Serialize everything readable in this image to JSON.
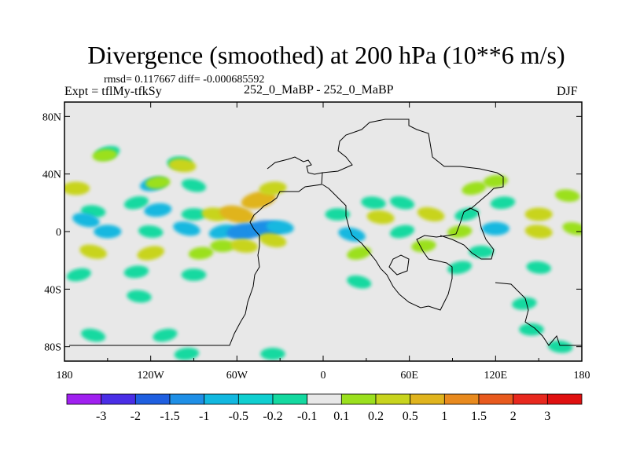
{
  "chart_data": {
    "type": "heatmap",
    "title": "Divergence (smoothed) at 200 hPa (10**6 m/s)",
    "stats_text": "rmsd= 0.117667  diff= -0.000685592",
    "left_label": "Expt = tflMy-tfkSy",
    "center_label": "252_0_MaBP - 252_0_MaBP",
    "right_label": "DJF",
    "xlabel": "",
    "ylabel": "",
    "xlim": [
      -180,
      180
    ],
    "ylim": [
      -90,
      90
    ],
    "x_ticks": [
      {
        "value": -180,
        "label": "180"
      },
      {
        "value": -120,
        "label": "120W"
      },
      {
        "value": -60,
        "label": "60W"
      },
      {
        "value": 0,
        "label": "0"
      },
      {
        "value": 60,
        "label": "60E"
      },
      {
        "value": 120,
        "label": "120E"
      },
      {
        "value": 180,
        "label": "180"
      }
    ],
    "y_ticks": [
      {
        "value": 80,
        "label": "80N"
      },
      {
        "value": 40,
        "label": "40N"
      },
      {
        "value": 0,
        "label": "0"
      },
      {
        "value": -40,
        "label": "40S"
      },
      {
        "value": -80,
        "label": "80S"
      }
    ],
    "colorbar": {
      "labels": [
        "-3",
        "-2",
        "-1.5",
        "-1",
        "-0.5",
        "-0.2",
        "-0.1",
        "0.1",
        "0.2",
        "0.5",
        "1",
        "1.5",
        "2",
        "3"
      ],
      "colors": [
        "#a020f0",
        "#4a2ee6",
        "#1f5fe0",
        "#1f8fe6",
        "#12b8e0",
        "#10cfd0",
        "#14d9a0",
        "#e8e8e8",
        "#9be01e",
        "#c8d41e",
        "#e0b41e",
        "#e88a1e",
        "#e85a1e",
        "#e8281e",
        "#e01010"
      ]
    },
    "fill_colors": {
      "background": "#e8e8e8",
      "neg_small": "#14d9a0",
      "neg_mid": "#12b8e0",
      "neg_large": "#1f8fe6",
      "pos_small": "#9be01e",
      "pos_mid": "#c8d41e",
      "pos_large": "#e0b41e"
    },
    "cells": [
      {
        "lon": -150,
        "lat": 55,
        "value": -0.15
      },
      {
        "lon": -152,
        "lat": 53,
        "value": 0.15
      },
      {
        "lon": -172,
        "lat": 30,
        "value": 0.3
      },
      {
        "lon": -160,
        "lat": 14,
        "value": -0.15
      },
      {
        "lon": -165,
        "lat": 8,
        "value": -0.3
      },
      {
        "lon": -118,
        "lat": 33,
        "value": -0.3
      },
      {
        "lon": -115,
        "lat": 34,
        "value": 0.15
      },
      {
        "lon": -100,
        "lat": 48,
        "value": -0.15
      },
      {
        "lon": -98,
        "lat": 46,
        "value": 0.3
      },
      {
        "lon": -90,
        "lat": 32,
        "value": -0.15
      },
      {
        "lon": -130,
        "lat": 20,
        "value": -0.15
      },
      {
        "lon": -115,
        "lat": 15,
        "value": -0.3
      },
      {
        "lon": -90,
        "lat": 12,
        "value": -0.15
      },
      {
        "lon": -75,
        "lat": 12,
        "value": 0.3
      },
      {
        "lon": -60,
        "lat": 12,
        "value": 0.7
      },
      {
        "lon": -45,
        "lat": 22,
        "value": 0.7
      },
      {
        "lon": -35,
        "lat": 30,
        "value": 0.3
      },
      {
        "lon": -150,
        "lat": 0,
        "value": -0.3
      },
      {
        "lon": -120,
        "lat": 0,
        "value": -0.15
      },
      {
        "lon": -95,
        "lat": 2,
        "value": -0.3
      },
      {
        "lon": -70,
        "lat": 0,
        "value": -0.3
      },
      {
        "lon": -55,
        "lat": 0,
        "value": -0.7
      },
      {
        "lon": -40,
        "lat": 2,
        "value": -0.7
      },
      {
        "lon": -30,
        "lat": 3,
        "value": -0.3
      },
      {
        "lon": -160,
        "lat": -14,
        "value": 0.3
      },
      {
        "lon": -120,
        "lat": -15,
        "value": 0.3
      },
      {
        "lon": -85,
        "lat": -15,
        "value": 0.15
      },
      {
        "lon": -70,
        "lat": -10,
        "value": 0.15
      },
      {
        "lon": -55,
        "lat": -10,
        "value": 0.3
      },
      {
        "lon": -35,
        "lat": -6,
        "value": 0.3
      },
      {
        "lon": -170,
        "lat": -30,
        "value": -0.15
      },
      {
        "lon": -130,
        "lat": -28,
        "value": -0.15
      },
      {
        "lon": -90,
        "lat": -30,
        "value": -0.15
      },
      {
        "lon": -128,
        "lat": -45,
        "value": -0.15
      },
      {
        "lon": -160,
        "lat": -72,
        "value": -0.15
      },
      {
        "lon": -110,
        "lat": -72,
        "value": -0.15
      },
      {
        "lon": -95,
        "lat": -85,
        "value": -0.15
      },
      {
        "lon": -35,
        "lat": -85,
        "value": -0.15
      },
      {
        "lon": 35,
        "lat": 20,
        "value": -0.15
      },
      {
        "lon": 55,
        "lat": 20,
        "value": -0.15
      },
      {
        "lon": 105,
        "lat": 30,
        "value": 0.15
      },
      {
        "lon": 120,
        "lat": 35,
        "value": 0.15
      },
      {
        "lon": 10,
        "lat": 12,
        "value": -0.15
      },
      {
        "lon": 40,
        "lat": 10,
        "value": 0.3
      },
      {
        "lon": 75,
        "lat": 12,
        "value": 0.3
      },
      {
        "lon": 100,
        "lat": 12,
        "value": -0.15
      },
      {
        "lon": 125,
        "lat": 20,
        "value": -0.15
      },
      {
        "lon": 150,
        "lat": 12,
        "value": 0.3
      },
      {
        "lon": 170,
        "lat": 25,
        "value": 0.15
      },
      {
        "lon": 20,
        "lat": -2,
        "value": -0.3
      },
      {
        "lon": 55,
        "lat": 0,
        "value": -0.15
      },
      {
        "lon": 95,
        "lat": 0,
        "value": 0.15
      },
      {
        "lon": 120,
        "lat": 2,
        "value": -0.3
      },
      {
        "lon": 150,
        "lat": 0,
        "value": 0.3
      },
      {
        "lon": 175,
        "lat": 2,
        "value": 0.15
      },
      {
        "lon": 25,
        "lat": -15,
        "value": 0.15
      },
      {
        "lon": 70,
        "lat": -10,
        "value": 0.15
      },
      {
        "lon": 110,
        "lat": -14,
        "value": -0.15
      },
      {
        "lon": 150,
        "lat": -25,
        "value": -0.15
      },
      {
        "lon": 25,
        "lat": -35,
        "value": -0.15
      },
      {
        "lon": 95,
        "lat": -25,
        "value": -0.15
      },
      {
        "lon": 140,
        "lat": -50,
        "value": -0.15
      },
      {
        "lon": 145,
        "lat": -68,
        "value": -0.15
      },
      {
        "lon": 165,
        "lat": -80,
        "value": -0.15
      }
    ]
  }
}
